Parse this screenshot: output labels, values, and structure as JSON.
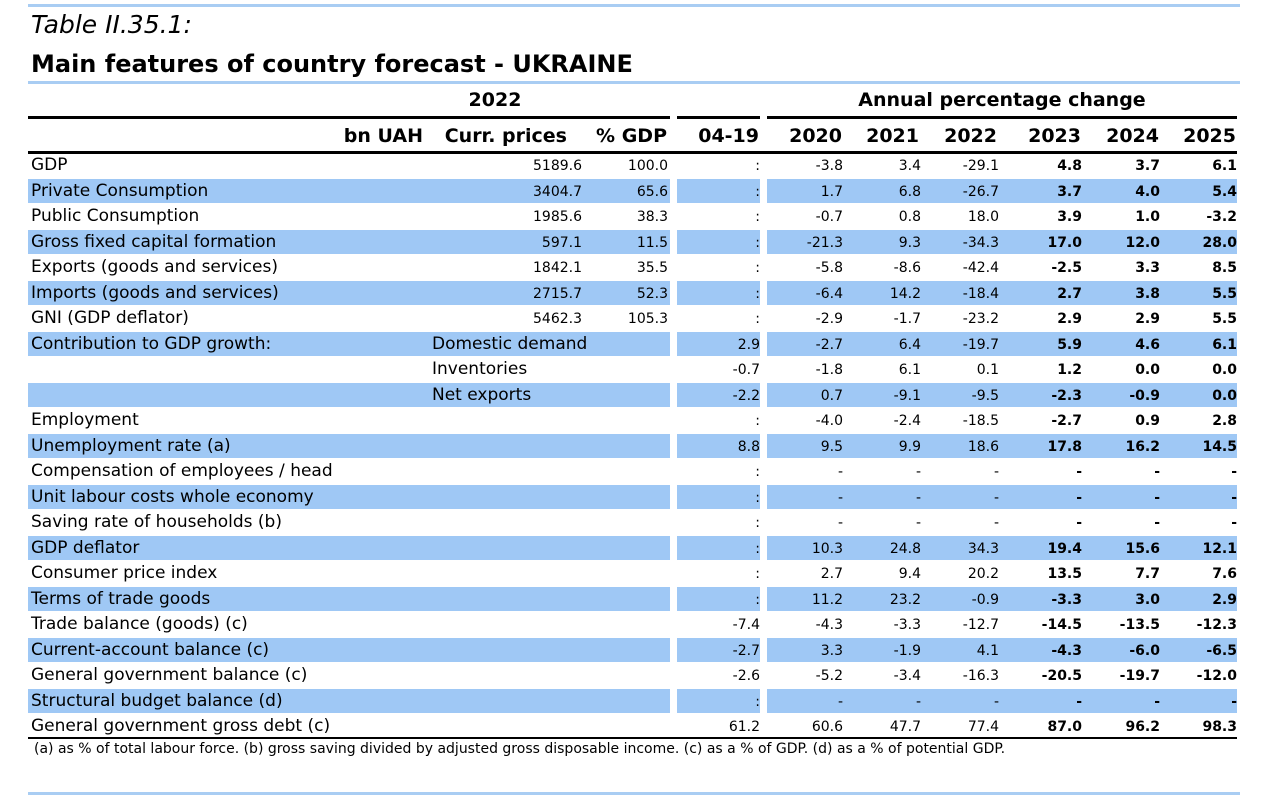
{
  "header": {
    "title": "Table II.35.1:",
    "subtitle": "Main features of country forecast - UKRAINE"
  },
  "table": {
    "groups": [
      "2022",
      "Annual percentage change"
    ],
    "columns": [
      "bn UAH",
      "Curr. prices",
      "% GDP",
      "04-19",
      "2020",
      "2021",
      "2022",
      "2023",
      "2024",
      "2025"
    ],
    "rows": [
      {
        "label": "GDP",
        "cells": [
          "5189.6",
          "100.0",
          ":",
          "-3.8",
          "3.4",
          "-29.1",
          "4.8",
          "3.7",
          "6.1"
        ]
      },
      {
        "label": "Private Consumption",
        "cells": [
          "3404.7",
          "65.6",
          ":",
          "1.7",
          "6.8",
          "-26.7",
          "3.7",
          "4.0",
          "5.4"
        ]
      },
      {
        "label": "Public Consumption",
        "cells": [
          "1985.6",
          "38.3",
          ":",
          "-0.7",
          "0.8",
          "18.0",
          "3.9",
          "1.0",
          "-3.2"
        ]
      },
      {
        "label": "Gross fixed capital formation",
        "cells": [
          "597.1",
          "11.5",
          ":",
          "-21.3",
          "9.3",
          "-34.3",
          "17.0",
          "12.0",
          "28.0"
        ]
      },
      {
        "label": "Exports (goods and services)",
        "cells": [
          "1842.1",
          "35.5",
          ":",
          "-5.8",
          "-8.6",
          "-42.4",
          "-2.5",
          "3.3",
          "8.5"
        ]
      },
      {
        "label": "Imports (goods and services)",
        "cells": [
          "2715.7",
          "52.3",
          ":",
          "-6.4",
          "14.2",
          "-18.4",
          "2.7",
          "3.8",
          "5.5"
        ]
      },
      {
        "label": "GNI (GDP deflator)",
        "cells": [
          "5462.3",
          "105.3",
          ":",
          "-2.9",
          "-1.7",
          "-23.2",
          "2.9",
          "2.9",
          "5.5"
        ]
      },
      {
        "label": "Contribution to GDP growth:",
        "sub": "Domestic demand",
        "cells": [
          null,
          null,
          "2.9",
          "-2.7",
          "6.4",
          "-19.7",
          "5.9",
          "4.6",
          "6.1"
        ]
      },
      {
        "sub": "Inventories",
        "cells": [
          null,
          null,
          "-0.7",
          "-1.8",
          "6.1",
          "0.1",
          "1.2",
          "0.0",
          "0.0"
        ]
      },
      {
        "sub": "Net exports",
        "cells": [
          null,
          null,
          "-2.2",
          "0.7",
          "-9.1",
          "-9.5",
          "-2.3",
          "-0.9",
          "0.0"
        ]
      },
      {
        "label": "Employment",
        "cells": [
          null,
          null,
          ":",
          "-4.0",
          "-2.4",
          "-18.5",
          "-2.7",
          "0.9",
          "2.8"
        ]
      },
      {
        "label": "Unemployment rate (a)",
        "cells": [
          null,
          null,
          "8.8",
          "9.5",
          "9.9",
          "18.6",
          "17.8",
          "16.2",
          "14.5"
        ]
      },
      {
        "label": "Compensation of employees / head",
        "cells": [
          null,
          null,
          ":",
          "-",
          "-",
          "-",
          "-",
          "-",
          "-"
        ]
      },
      {
        "label": "Unit labour costs whole economy",
        "cells": [
          null,
          null,
          ":",
          "-",
          "-",
          "-",
          "-",
          "-",
          "-"
        ]
      },
      {
        "label": "Saving rate of households (b)",
        "cells": [
          null,
          null,
          ":",
          "-",
          "-",
          "-",
          "-",
          "-",
          "-"
        ]
      },
      {
        "label": "GDP deflator",
        "cells": [
          null,
          null,
          ":",
          "10.3",
          "24.8",
          "34.3",
          "19.4",
          "15.6",
          "12.1"
        ]
      },
      {
        "label": "Consumer price index",
        "cells": [
          null,
          null,
          ":",
          "2.7",
          "9.4",
          "20.2",
          "13.5",
          "7.7",
          "7.6"
        ]
      },
      {
        "label": "Terms of trade goods",
        "cells": [
          null,
          null,
          ":",
          "11.2",
          "23.2",
          "-0.9",
          "-3.3",
          "3.0",
          "2.9"
        ]
      },
      {
        "label": "Trade balance (goods) (c)",
        "cells": [
          null,
          null,
          "-7.4",
          "-4.3",
          "-3.3",
          "-12.7",
          "-14.5",
          "-13.5",
          "-12.3"
        ]
      },
      {
        "label": "Current-account balance (c)",
        "cells": [
          null,
          null,
          "-2.7",
          "3.3",
          "-1.9",
          "4.1",
          "-4.3",
          "-6.0",
          "-6.5"
        ]
      },
      {
        "label": "General government balance (c)",
        "cells": [
          null,
          null,
          "-2.6",
          "-5.2",
          "-3.4",
          "-16.3",
          "-20.5",
          "-19.7",
          "-12.0"
        ]
      },
      {
        "label": "Structural budget balance (d)",
        "cells": [
          null,
          null,
          ":",
          "-",
          "-",
          "-",
          "-",
          "-",
          "-"
        ]
      },
      {
        "label": "General government gross debt (c)",
        "cells": [
          null,
          null,
          "61.2",
          "60.6",
          "47.7",
          "77.4",
          "87.0",
          "96.2",
          "98.3"
        ]
      }
    ],
    "footnote": "(a) as % of total labour force. (b) gross saving divided by adjusted gross disposable income.  (c) as a % of GDP. (d) as a % of potential GDP."
  }
}
